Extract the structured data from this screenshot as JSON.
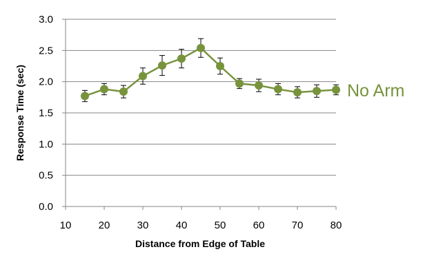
{
  "chart_data": {
    "type": "line",
    "title": "",
    "xlabel": "Distance from Edge of Table",
    "ylabel": "Response Time (sec)",
    "xlim": [
      10,
      80
    ],
    "ylim": [
      0.0,
      3.0
    ],
    "x_ticks": [
      "10",
      "20",
      "30",
      "40",
      "50",
      "60",
      "70",
      "80"
    ],
    "y_ticks": [
      "0.0",
      "0.5",
      "1.0",
      "1.5",
      "2.0",
      "2.5",
      "3.0"
    ],
    "grid": "horizontal",
    "legend": "right-of-line",
    "series": [
      {
        "name": "No Arm",
        "color": "#77933c",
        "x": [
          15,
          20,
          25,
          30,
          35,
          40,
          45,
          50,
          55,
          60,
          65,
          70,
          75,
          80
        ],
        "y": [
          1.77,
          1.88,
          1.84,
          2.09,
          2.26,
          2.37,
          2.54,
          2.25,
          1.97,
          1.94,
          1.88,
          1.83,
          1.85,
          1.87
        ],
        "error": [
          0.09,
          0.09,
          0.1,
          0.13,
          0.16,
          0.15,
          0.15,
          0.13,
          0.08,
          0.1,
          0.09,
          0.09,
          0.1,
          0.08
        ]
      }
    ]
  }
}
